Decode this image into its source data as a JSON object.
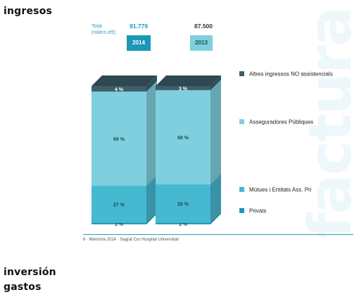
{
  "headings": {
    "ingresos": "ingresos",
    "inversion": "inversión",
    "gastos": "gastos"
  },
  "totals": {
    "label": "Total",
    "unit": "(milers d'€)",
    "value_2014": "91.779",
    "value_2013": "87.500"
  },
  "footer": "6 · Memòria 2014 · Sagrat Cor Hospital Universitari",
  "watermark": "factura",
  "colors": {
    "altres": "#3d5f6a",
    "asseguradores": "#7fcfdf",
    "mutues": "#46b8d0",
    "privats": "#1a98b8",
    "accent": "#2a9cb8"
  },
  "chart_data": {
    "type": "bar",
    "stacked": true,
    "style": "3d",
    "categories": [
      "2014",
      "2013"
    ],
    "series": [
      {
        "name": "Privats",
        "values": [
          1,
          1
        ],
        "color_key": "privats"
      },
      {
        "name": "Mútues i Entitats Ass. Privades",
        "values": [
          27,
          28
        ],
        "color_key": "mutues"
      },
      {
        "name": "Asseguradores Públiques",
        "values": [
          68,
          68
        ],
        "color_key": "asseguradores"
      },
      {
        "name": "Altres ingressos NO assistencials",
        "values": [
          4,
          3
        ],
        "color_key": "altres"
      }
    ],
    "value_suffix": " %",
    "legend_labels": [
      "Altres ingressos NO assistencials",
      "Asseguradores Públiques",
      "Mútues i Entitats Ass. Pri",
      "Privats"
    ],
    "legend_position": "right",
    "ylim": [
      0,
      100
    ]
  }
}
